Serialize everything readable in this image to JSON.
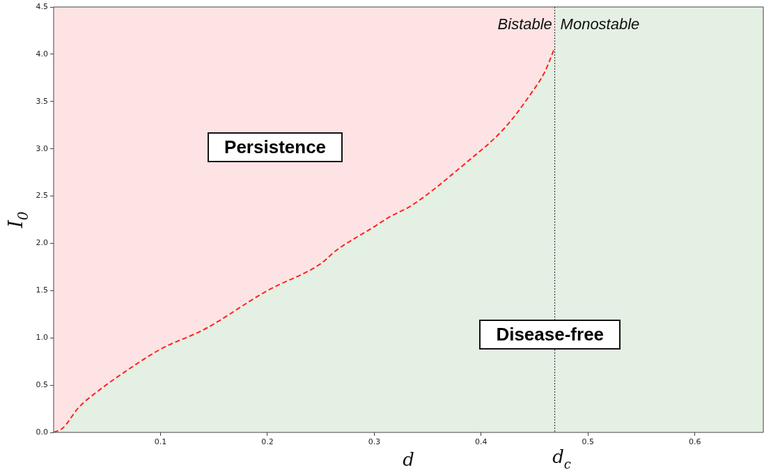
{
  "chart_data": {
    "type": "line",
    "xlabel": "d",
    "ylabel": "I$_{0}$",
    "xlim": [
      0,
      0.664
    ],
    "ylim": [
      0,
      4.5
    ],
    "xticks": [
      0.1,
      0.2,
      0.3,
      0.4,
      0.5,
      0.6
    ],
    "yticks": [
      {
        "value": 0,
        "label": "0.0"
      },
      {
        "value": 0.5,
        "label": "0.5"
      },
      {
        "value": 1,
        "label": "1.0"
      },
      {
        "value": 1.5,
        "label": "1.5"
      },
      {
        "value": 2,
        "label": "2.0"
      },
      {
        "value": 2.5,
        "label": "2.5"
      },
      {
        "value": 3,
        "label": "3.0"
      },
      {
        "value": 3.5,
        "label": "3.5"
      },
      {
        "value": 4,
        "label": "4.0"
      },
      {
        "value": 4.5,
        "label": "4.5"
      }
    ],
    "series": [
      {
        "color": "#ff2020",
        "line_style": "dashed",
        "x": [
          0,
          0.0084,
          0.0236,
          0.043,
          0.0627,
          0.1,
          0.141,
          0.2,
          0.2493,
          0.265,
          0.2992,
          0.3144,
          0.3349,
          0.3846,
          0.422,
          0.447,
          0.4594,
          0.4689
        ],
        "values": [
          0,
          0.044,
          0.265,
          0.45,
          0.61,
          0.88,
          1.09,
          1.5,
          1.78,
          1.93,
          2.17,
          2.28,
          2.4,
          2.84,
          3.22,
          3.59,
          3.81,
          4.07
        ]
      }
    ],
    "ref_lines": [
      {
        "axis": "x",
        "value": 0.4689,
        "label": "d$_{c}$",
        "color": "#222222",
        "line_style": "dotted"
      }
    ],
    "bands": [
      {
        "axis": "x",
        "from": 0.4689,
        "to": 0.664,
        "color": "#e4f0e3"
      }
    ],
    "annotations": [
      "Bistable",
      "Monostable",
      "Persistence",
      "Disease-free"
    ],
    "grid": false,
    "legend": false,
    "marker": "none"
  }
}
